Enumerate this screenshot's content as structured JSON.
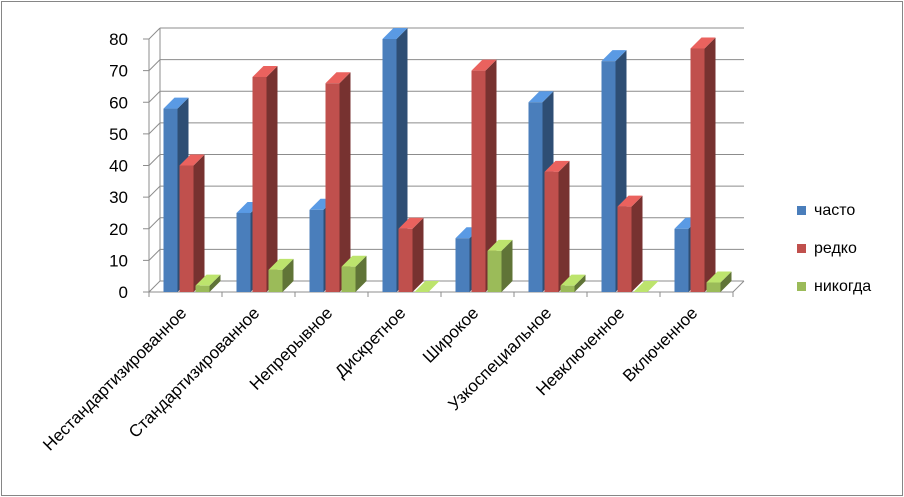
{
  "chart_data": {
    "type": "bar",
    "categories": [
      "Нестандартизированное",
      "Стандартизированное",
      "Непрерывное",
      "Дискретное",
      "Широкое",
      "Узкоспециальное",
      "Невключенное",
      "Включенное"
    ],
    "series": [
      {
        "name": "часто",
        "values": [
          58,
          25,
          26,
          80,
          17,
          60,
          73,
          20
        ],
        "color": "#4a7ebb"
      },
      {
        "name": "редко",
        "values": [
          40,
          68,
          66,
          20,
          70,
          38,
          27,
          77
        ],
        "color": "#c0504d"
      },
      {
        "name": "никогда",
        "values": [
          2,
          7,
          8,
          0,
          13,
          2,
          0,
          3
        ],
        "color": "#9bbb59"
      }
    ],
    "yticks": [
      "0",
      "10",
      "20",
      "30",
      "40",
      "50",
      "60",
      "70",
      "80"
    ],
    "ylim": [
      0,
      80
    ],
    "grid": true,
    "legend": "right",
    "title": "",
    "xlabel": "",
    "ylabel": ""
  }
}
